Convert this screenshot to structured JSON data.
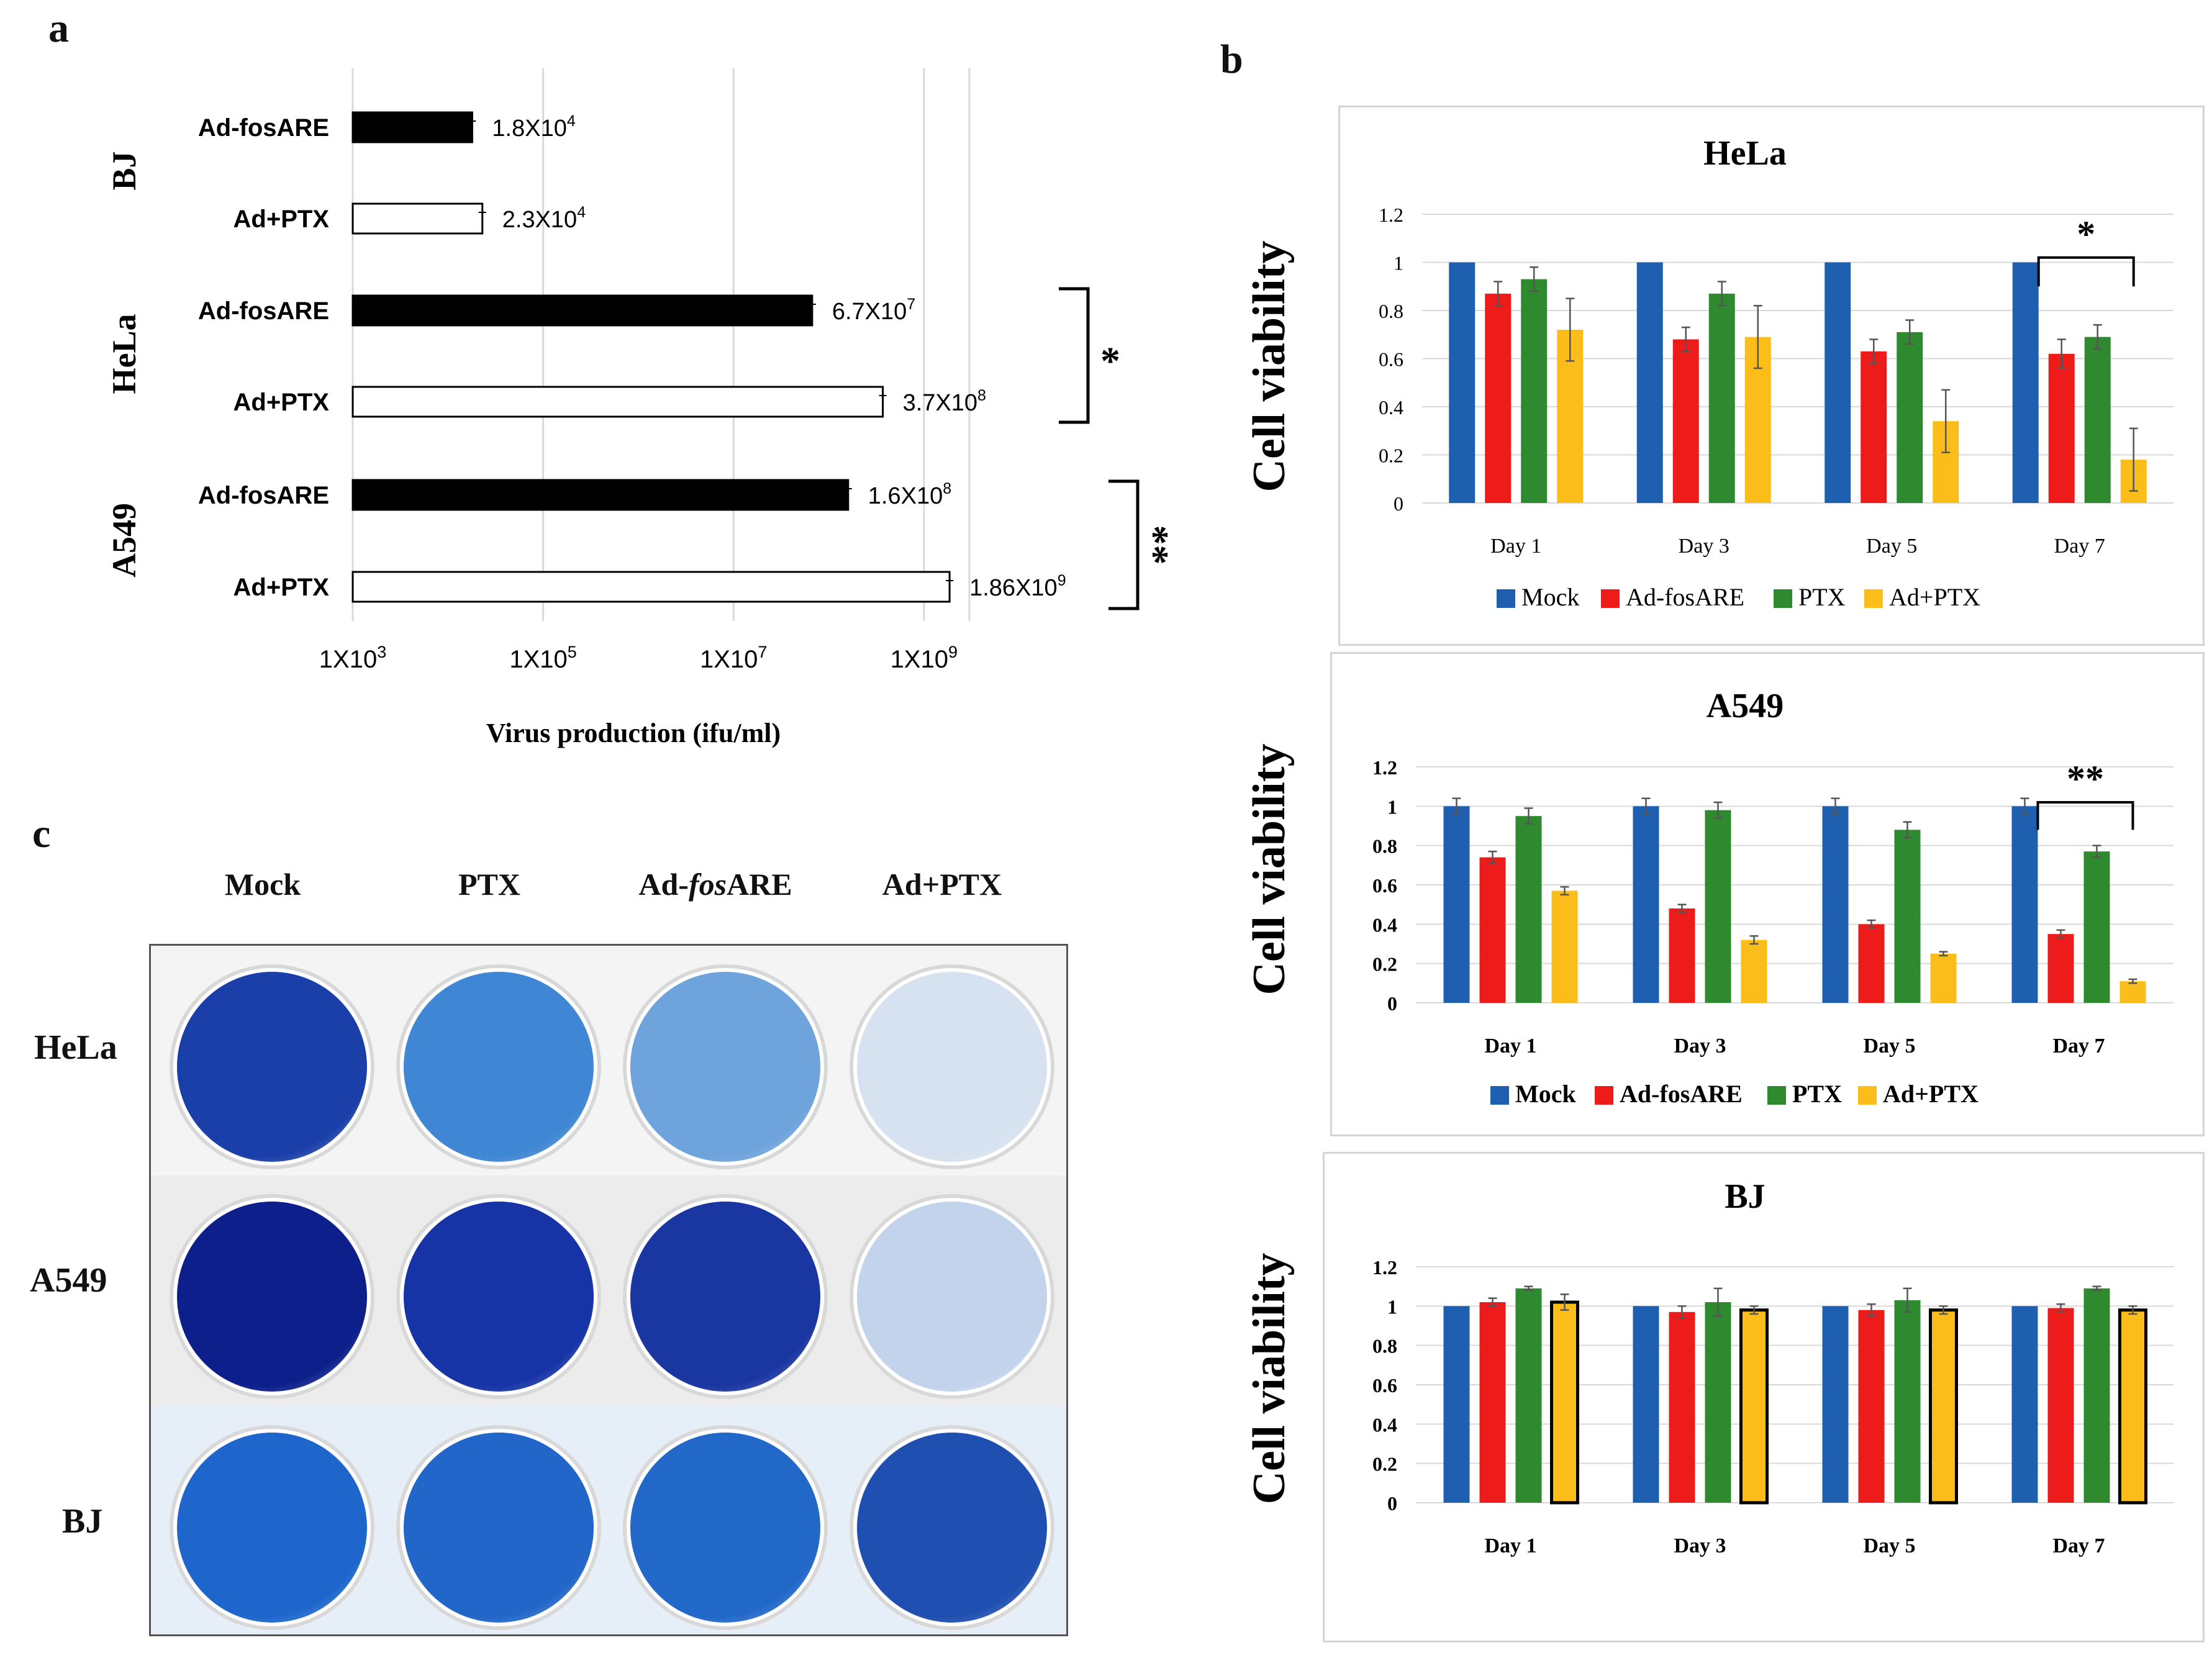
{
  "panel_labels": {
    "a": "a",
    "b": "b",
    "c": "c"
  },
  "colors": {
    "mock": "#1f5fb0",
    "ad_fosare": "#ee1b1b",
    "ptx": "#2f8a2f",
    "ad_ptx": "#fbbd19",
    "bar_black": "#000000",
    "grid": "#d9d9d9"
  },
  "panel_c": {
    "columns": [
      "Mock",
      "PTX",
      "Ad-",
      "fos",
      "ARE",
      "Ad+PTX"
    ],
    "column_labels": {
      "mock": "Mock",
      "ptx": "PTX",
      "ad_prefix": "Ad-",
      "ad_italic": "fos",
      "ad_suffix": "ARE",
      "adptx": "Ad+PTX"
    },
    "rows": [
      "HeLa",
      "A549",
      "BJ"
    ],
    "row_labels": {
      "hela": "HeLa",
      "a549": "A549",
      "bj": "BJ"
    },
    "well_stain": [
      [
        "#1a3fa8",
        "#3f86d4",
        "#6ea3dc",
        "#d7e2f0"
      ],
      [
        "#0d1f8a",
        "#1634a5",
        "#1a36a0",
        "#c3d3ec"
      ],
      [
        "#1e66cc",
        "#2166c8",
        "#2268c9",
        "#1f4fb0"
      ]
    ]
  },
  "chart_data": [
    {
      "type": "bar",
      "orientation": "horizontal",
      "xscale": "log10",
      "xlim": [
        1000,
        3000000000
      ],
      "xlabel": "Virus production (ifu/ml)",
      "xticks": [
        "1X10",
        "1X10",
        "1X10",
        "1X10"
      ],
      "xtick_exponents": [
        "3",
        "5",
        "7",
        "9"
      ],
      "xtick_values": [
        1000,
        100000,
        10000000,
        1000000000
      ],
      "groups": [
        "BJ",
        "HeLa",
        "A549"
      ],
      "bars": [
        {
          "group": "BJ",
          "label": "Ad-fosARE",
          "value": 18000,
          "fill": "black",
          "value_label": "1.8X10",
          "value_exp": "4"
        },
        {
          "group": "BJ",
          "label": "Ad+PTX",
          "value": 23000,
          "fill": "white",
          "value_label": "2.3X10",
          "value_exp": "4"
        },
        {
          "group": "HeLa",
          "label": "Ad-fosARE",
          "value": 67000000,
          "fill": "black",
          "value_label": "6.7X10",
          "value_exp": "7"
        },
        {
          "group": "HeLa",
          "label": "Ad+PTX",
          "value": 370000000,
          "fill": "white",
          "value_label": "3.7X10",
          "value_exp": "8"
        },
        {
          "group": "A549",
          "label": "Ad-fosARE",
          "value": 160000000,
          "fill": "black",
          "value_label": "1.6X10",
          "value_exp": "8"
        },
        {
          "group": "A549",
          "label": "Ad+PTX",
          "value": 1860000000,
          "fill": "white",
          "value_label": "1.86X10",
          "value_exp": "9"
        }
      ],
      "significance": [
        {
          "group": "HeLa",
          "mark": "*"
        },
        {
          "group": "A549",
          "mark": "**"
        }
      ]
    },
    {
      "type": "bar",
      "title": "HeLa",
      "ylabel": "Cell viability",
      "ylim": [
        0,
        1.2
      ],
      "yticks": [
        "0",
        "0.2",
        "0.4",
        "0.6",
        "0.8",
        "1",
        "1.2"
      ],
      "categories": [
        "Day 1",
        "Day 3",
        "Day 5",
        "Day 7"
      ],
      "series": [
        {
          "name": "Mock",
          "values": [
            1.0,
            1.0,
            1.0,
            1.0
          ],
          "errors": [
            0,
            0,
            0,
            0
          ]
        },
        {
          "name": "Ad-fosARE",
          "values": [
            0.87,
            0.68,
            0.63,
            0.62
          ],
          "errors": [
            0.05,
            0.05,
            0.05,
            0.06
          ]
        },
        {
          "name": "PTX",
          "values": [
            0.93,
            0.87,
            0.71,
            0.69
          ],
          "errors": [
            0.05,
            0.05,
            0.05,
            0.05
          ]
        },
        {
          "name": "Ad+PTX",
          "values": [
            0.72,
            0.69,
            0.34,
            0.18
          ],
          "errors": [
            0.13,
            0.13,
            0.13,
            0.13
          ]
        }
      ],
      "significance": {
        "category": "Day 7",
        "from": "Mock",
        "to": "Ad+PTX",
        "mark": "*"
      }
    },
    {
      "type": "bar",
      "title": "A549",
      "ylabel": "Cell viability",
      "ylim": [
        0,
        1.2
      ],
      "yticks": [
        "0",
        "0.2",
        "0.4",
        "0.6",
        "0.8",
        "1",
        "1.2"
      ],
      "categories": [
        "Day 1",
        "Day 3",
        "Day 5",
        "Day 7"
      ],
      "series": [
        {
          "name": "Mock",
          "values": [
            1.0,
            1.0,
            1.0,
            1.0
          ],
          "errors": [
            0.04,
            0.04,
            0.04,
            0.04
          ]
        },
        {
          "name": "Ad-fosARE",
          "values": [
            0.74,
            0.48,
            0.4,
            0.35
          ],
          "errors": [
            0.03,
            0.02,
            0.02,
            0.02
          ]
        },
        {
          "name": "PTX",
          "values": [
            0.95,
            0.98,
            0.88,
            0.77
          ],
          "errors": [
            0.04,
            0.04,
            0.04,
            0.03
          ]
        },
        {
          "name": "Ad+PTX",
          "values": [
            0.57,
            0.32,
            0.25,
            0.11
          ],
          "errors": [
            0.02,
            0.02,
            0.01,
            0.01
          ]
        }
      ],
      "significance": {
        "category": "Day 7",
        "from": "Mock",
        "to": "Ad+PTX",
        "mark": "**"
      }
    },
    {
      "type": "bar",
      "title": "BJ",
      "ylabel": "Cell viability",
      "ylim": [
        0,
        1.2
      ],
      "yticks": [
        "0",
        "0.2",
        "0.4",
        "0.6",
        "0.8",
        "1",
        "1.2"
      ],
      "categories": [
        "Day 1",
        "Day 3",
        "Day 5",
        "Day 7"
      ],
      "series": [
        {
          "name": "Mock",
          "values": [
            1.0,
            1.0,
            1.0,
            1.0
          ],
          "errors": [
            0,
            0,
            0,
            0
          ]
        },
        {
          "name": "Ad-fosARE",
          "values": [
            1.02,
            0.97,
            0.98,
            0.99
          ],
          "errors": [
            0.02,
            0.03,
            0.03,
            0.02
          ]
        },
        {
          "name": "PTX",
          "values": [
            1.09,
            1.02,
            1.03,
            1.09
          ],
          "errors": [
            0.01,
            0.07,
            0.06,
            0.01
          ]
        },
        {
          "name": "Ad+PTX",
          "values": [
            1.02,
            0.98,
            0.98,
            0.98
          ],
          "errors": [
            0.04,
            0.02,
            0.02,
            0.02
          ]
        }
      ]
    }
  ]
}
